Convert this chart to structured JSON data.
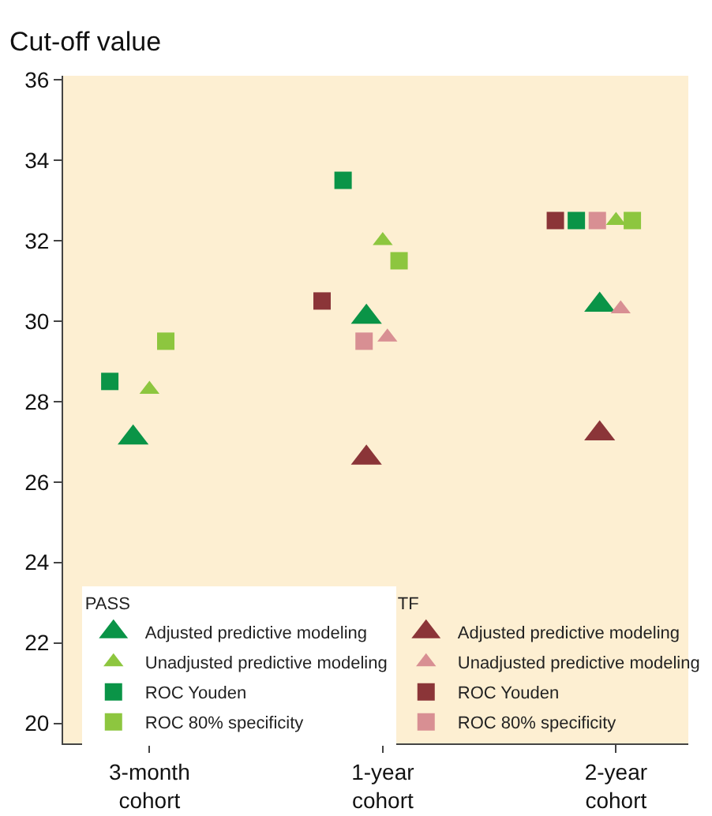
{
  "chart_data": {
    "type": "scatter",
    "ylabel": "Cut-off value",
    "categories": [
      "3-month cohort",
      "1-year cohort",
      "2-year cohort"
    ],
    "legend_title": [
      "PASS",
      "TF"
    ],
    "series": [
      {
        "name": "Adjusted predictive modeling",
        "color": "#0a9447",
        "marker": "triangle",
        "values": [
          27.1,
          30.1,
          30.4
        ]
      },
      {
        "name": "Unadjusted predictive modeling",
        "color": "#8dc63f",
        "marker": "triangle",
        "values": [
          28.3,
          32.0,
          32.5
        ]
      },
      {
        "name": "ROC Youden",
        "color": "#0a9447",
        "marker": "square",
        "values": [
          28.5,
          33.5,
          32.5
        ]
      },
      {
        "name": "ROC 80% specificity",
        "color": "#8dc63f",
        "marker": "square",
        "values": [
          29.5,
          31.5,
          32.5
        ]
      },
      {
        "name": "Adjusted predictive modeling",
        "color": "#8b3538",
        "marker": "triangle",
        "values": [
          null,
          26.6,
          27.2
        ]
      },
      {
        "name": "Unadjusted predictive modeling",
        "color": "#d88f93",
        "marker": "triangle",
        "values": [
          null,
          29.6,
          30.3
        ]
      },
      {
        "name": "ROC Youden",
        "color": "#8b3538",
        "marker": "square",
        "values": [
          null,
          30.5,
          32.5
        ]
      },
      {
        "name": "ROC 80% specificity",
        "color": "#d88f93",
        "marker": "square",
        "values": [
          null,
          29.5,
          32.5
        ]
      }
    ],
    "ylim": [
      19.5,
      36.1
    ],
    "yticks": [
      20,
      22,
      24,
      26,
      28,
      30,
      32,
      34,
      36
    ],
    "grid": false,
    "legend": "bottom"
  }
}
